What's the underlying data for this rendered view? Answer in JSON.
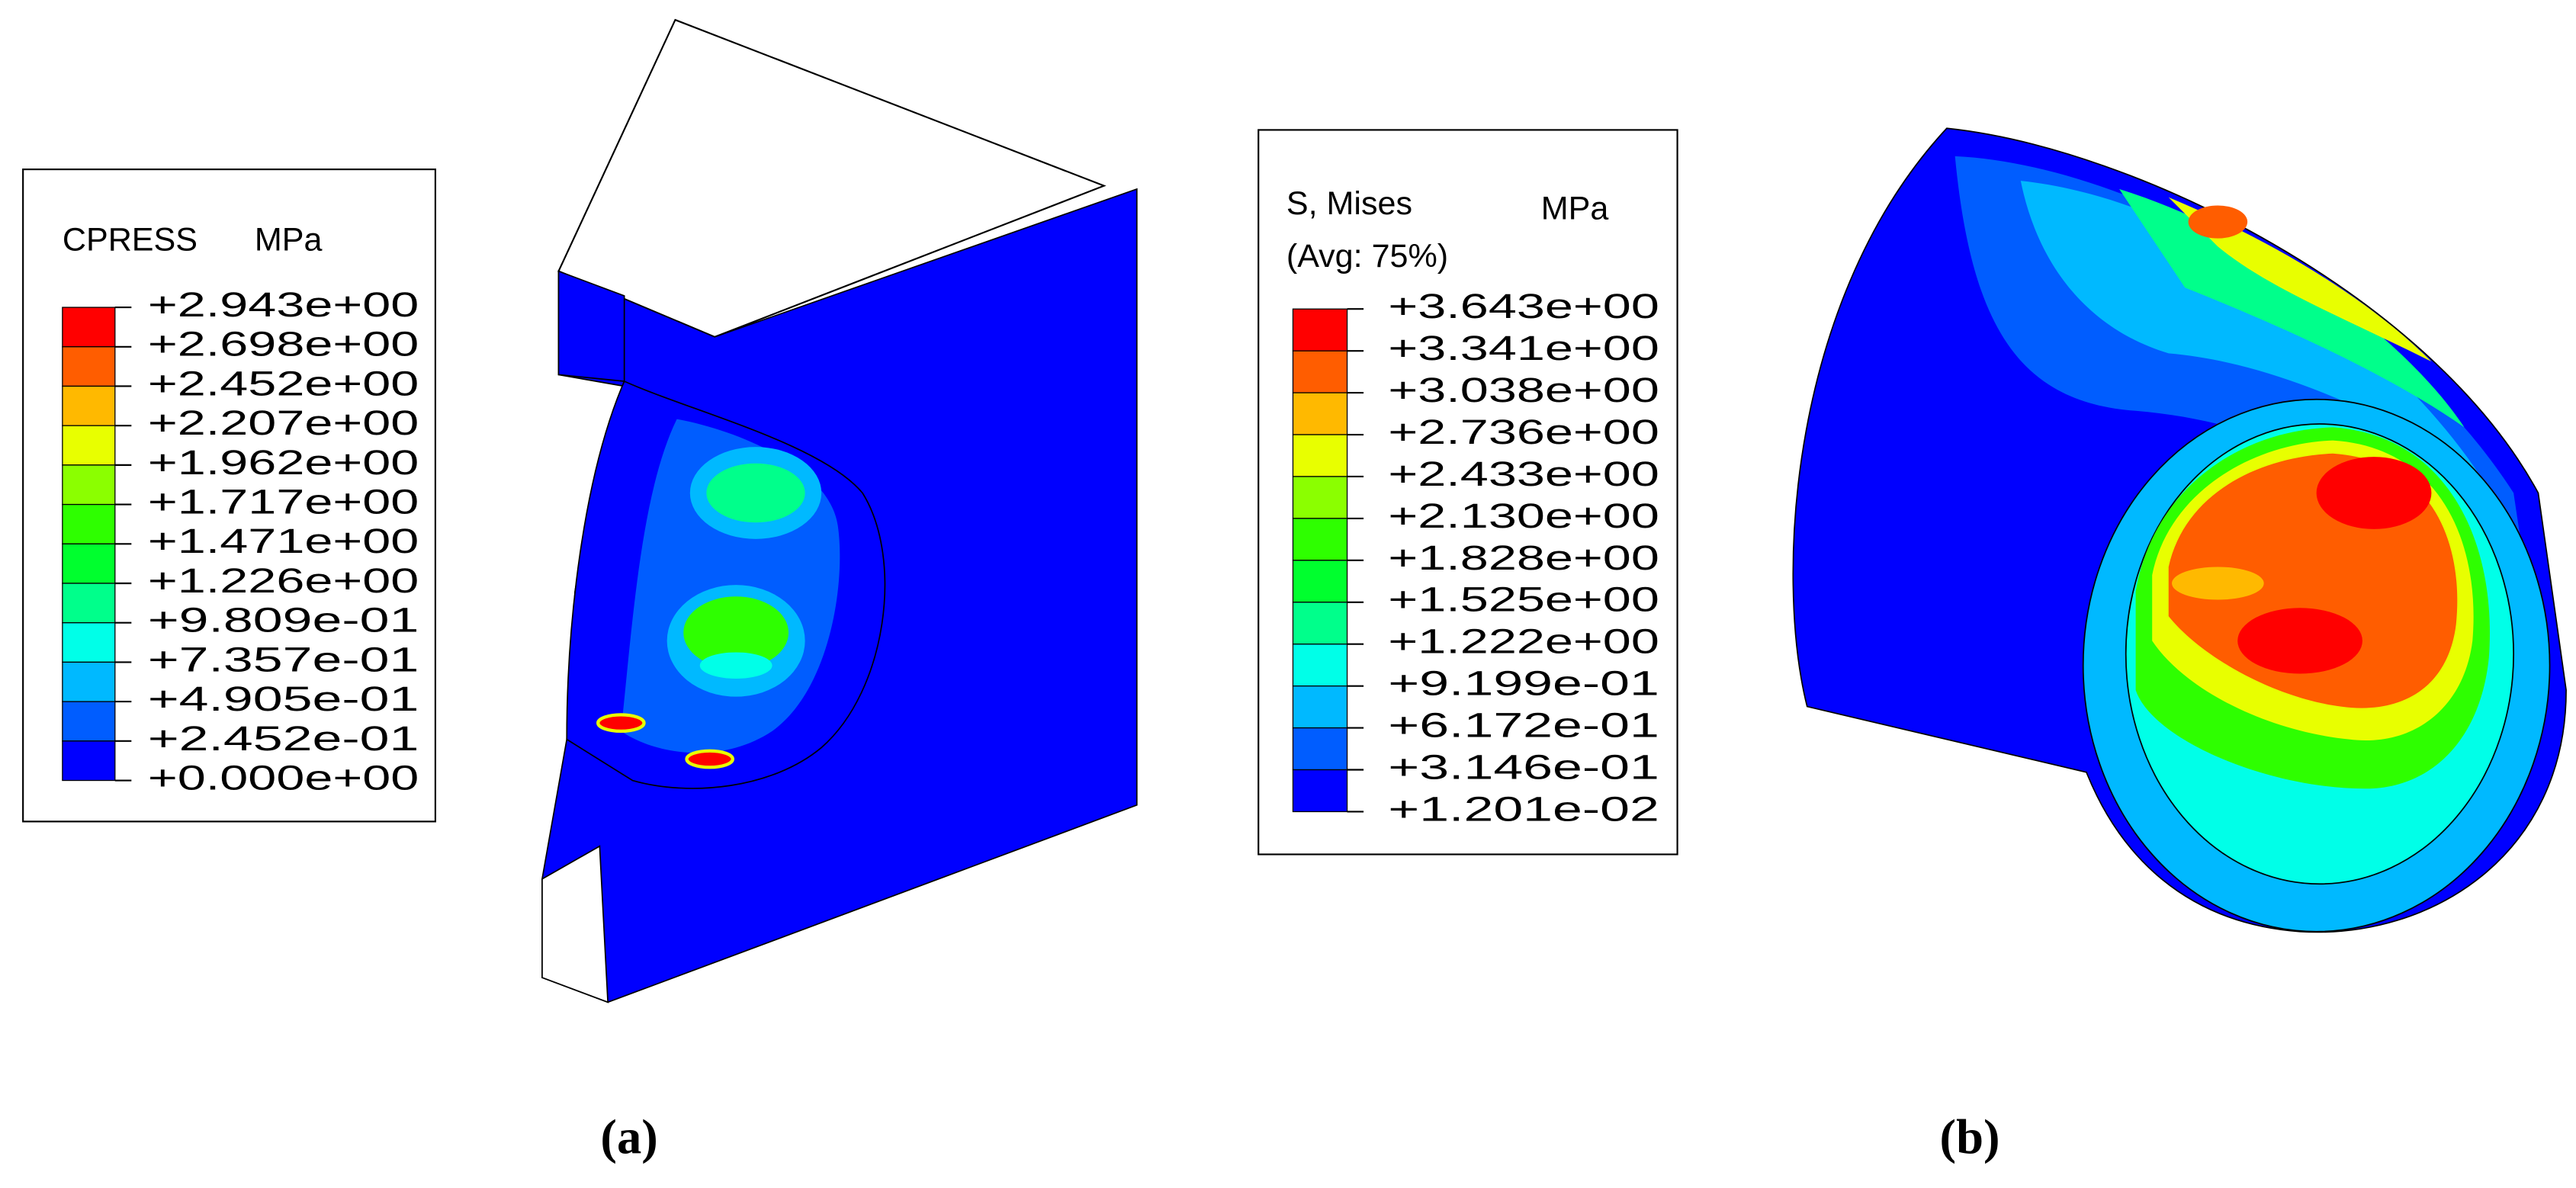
{
  "legends": [
    {
      "title": "CPRESS",
      "unit": "MPa",
      "labels": [
        "+2.943e+00",
        "+2.698e+00",
        "+2.452e+00",
        "+2.207e+00",
        "+1.962e+00",
        "+1.717e+00",
        "+1.471e+00",
        "+1.226e+00",
        "+9.809e-01",
        "+7.357e-01",
        "+4.905e-01",
        "+2.452e-01",
        "+0.000e+00"
      ],
      "colors": [
        "#ff0000",
        "#ff5d00",
        "#ffb900",
        "#e8ff00",
        "#8bff00",
        "#2eff00",
        "#00ff2e",
        "#00ff8b",
        "#00ffe8",
        "#00b9ff",
        "#005dff",
        "#0000ff"
      ]
    },
    {
      "title": "S, Mises",
      "unit": "MPa",
      "subtitle": "(Avg: 75%)",
      "labels": [
        "+3.643e+00",
        "+3.341e+00",
        "+3.038e+00",
        "+2.736e+00",
        "+2.433e+00",
        "+2.130e+00",
        "+1.828e+00",
        "+1.525e+00",
        "+1.222e+00",
        "+9.199e-01",
        "+6.172e-01",
        "+3.146e-01",
        "+1.201e-02"
      ],
      "colors": [
        "#ff0000",
        "#ff5d00",
        "#ffb900",
        "#e8ff00",
        "#8bff00",
        "#2eff00",
        "#00ff2e",
        "#00ff8b",
        "#00ffe8",
        "#00b9ff",
        "#005dff",
        "#0000ff"
      ]
    }
  ],
  "captions": [
    "(a)",
    "(b)"
  ]
}
